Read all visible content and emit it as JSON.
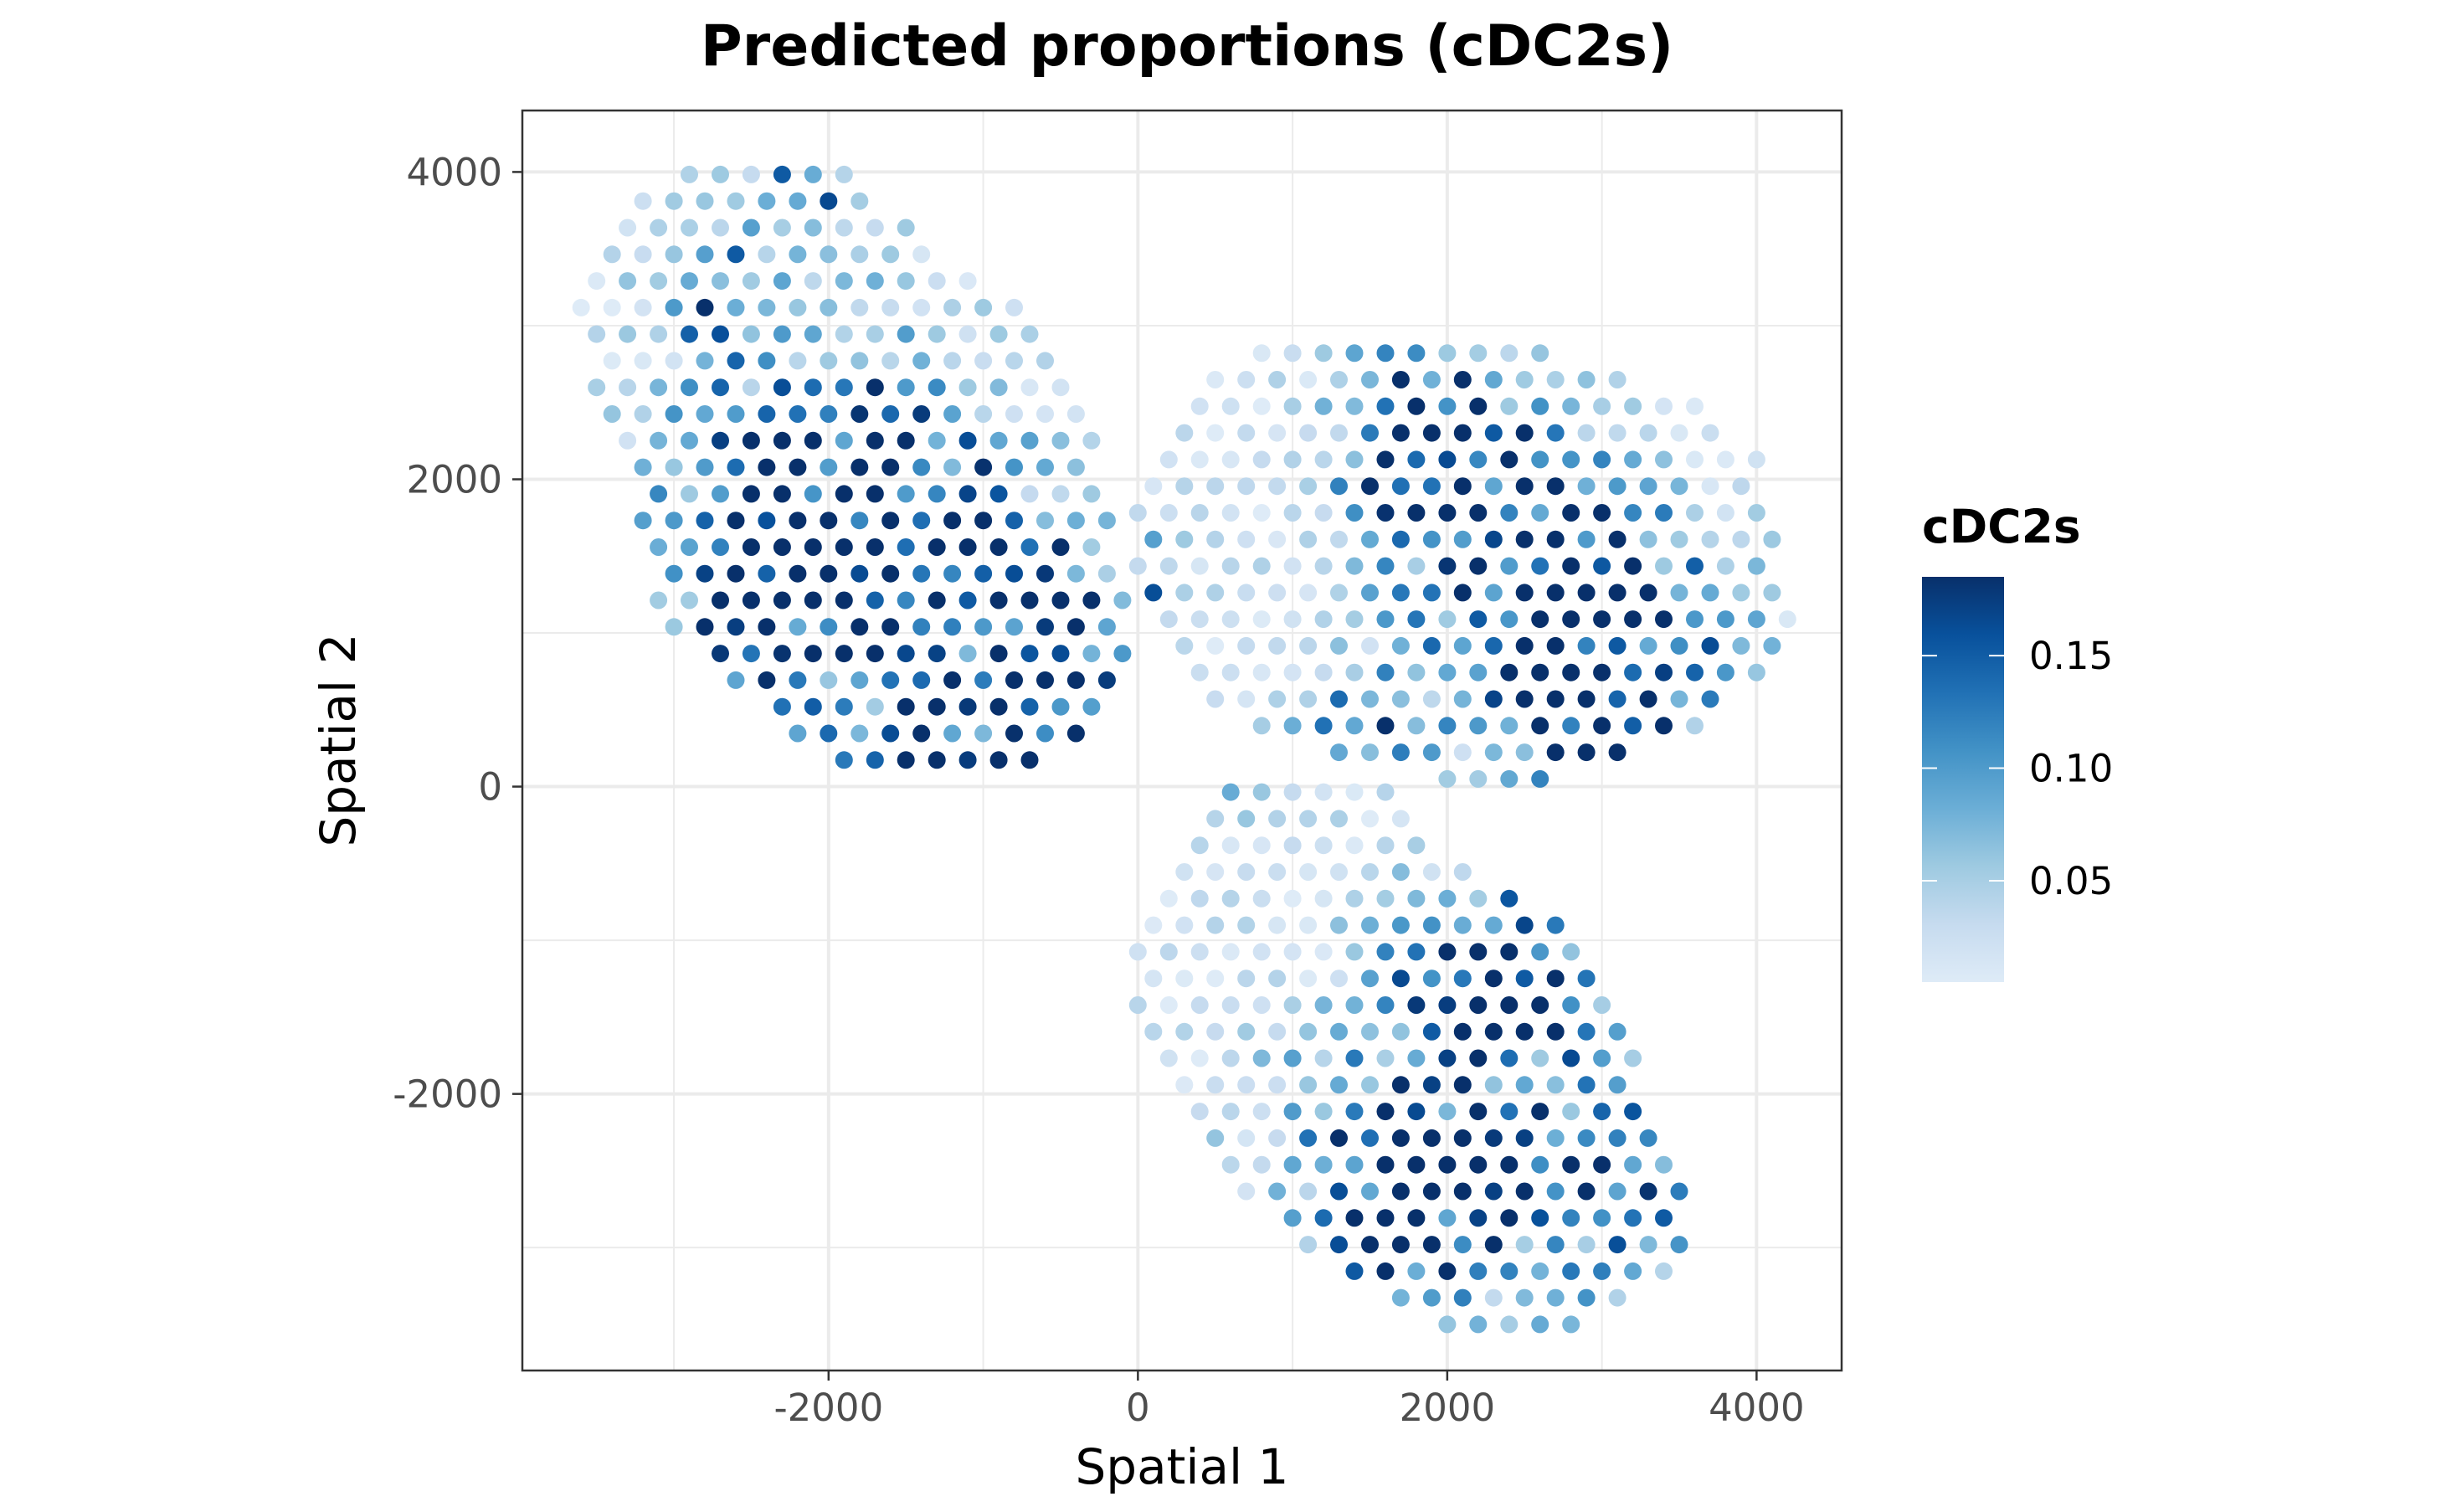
{
  "chart_data": {
    "type": "scatter",
    "title": "Predicted proportions (cDC2s)",
    "xlabel": "Spatial 1",
    "ylabel": "Spatial 2",
    "xlim": [
      -3980,
      4550
    ],
    "ylim": [
      -3800,
      4400
    ],
    "x_ticks": [
      -2000,
      0,
      2000,
      4000
    ],
    "y_ticks": [
      -2000,
      0,
      2000,
      4000
    ],
    "x_tick_labels": [
      "-2000",
      "0",
      "2000",
      "4000"
    ],
    "y_tick_labels": [
      "-2000",
      "0",
      "2000",
      "4000"
    ],
    "grid": true,
    "legend": {
      "title": "cDC2s",
      "position": "right",
      "range": [
        0.005,
        0.185
      ],
      "breaks": [
        0.05,
        0.1,
        0.15
      ],
      "break_labels": [
        "0.05",
        "0.10",
        "0.15"
      ],
      "colors": [
        "#deebf7",
        "#c6dbef",
        "#9ecae1",
        "#6baed6",
        "#4292c6",
        "#2171b5",
        "#08519c",
        "#08306b"
      ]
    },
    "spot_spacing": 200,
    "regions": [
      {
        "name": "upper-left section",
        "polygon": [
          [
            -2900,
            4100
          ],
          [
            -2000,
            4100
          ],
          [
            -1400,
            3600
          ],
          [
            -500,
            2900
          ],
          [
            -300,
            2300
          ],
          [
            0,
            900
          ],
          [
            -200,
            450
          ],
          [
            -700,
            100
          ],
          [
            -1400,
            0
          ],
          [
            -1900,
            100
          ],
          [
            -2400,
            500
          ],
          [
            -3050,
            1000
          ],
          [
            -3300,
            2000
          ],
          [
            -3600,
            2800
          ],
          [
            -3600,
            3300
          ],
          [
            -3300,
            3800
          ]
        ],
        "hotspots": [
          [
            -2100,
            2100,
            0.13,
            600
          ],
          [
            -1800,
            1700,
            0.09,
            500
          ],
          [
            -2800,
            3200,
            0.16,
            200
          ],
          [
            -1000,
            400,
            0.15,
            650
          ],
          [
            -500,
            1300,
            0.12,
            350
          ],
          [
            -2500,
            1200,
            0.11,
            500
          ],
          [
            -2200,
            3800,
            0.1,
            300
          ],
          [
            -1200,
            1950,
            0.08,
            300
          ]
        ],
        "base": 0.025
      },
      {
        "name": "right section",
        "polygon": [
          [
            600,
            2800
          ],
          [
            1200,
            2950
          ],
          [
            2700,
            2850
          ],
          [
            3600,
            2500
          ],
          [
            4050,
            2100
          ],
          [
            4250,
            1000
          ],
          [
            3800,
            500
          ],
          [
            3500,
            300
          ],
          [
            2800,
            50
          ],
          [
            2000,
            50
          ],
          [
            1100,
            250
          ],
          [
            500,
            500
          ],
          [
            0,
            1200
          ],
          [
            0,
            1900
          ],
          [
            300,
            2600
          ]
        ],
        "hotspots": [
          [
            1950,
            2300,
            0.15,
            450
          ],
          [
            2100,
            1800,
            0.08,
            500
          ],
          [
            3050,
            1000,
            0.16,
            550
          ],
          [
            2900,
            400,
            0.14,
            300
          ],
          [
            1500,
            300,
            0.12,
            300
          ],
          [
            2600,
            1200,
            0.08,
            500
          ],
          [
            100,
            1350,
            0.09,
            200
          ]
        ],
        "base": 0.02
      },
      {
        "name": "lower section",
        "polygon": [
          [
            500,
            100
          ],
          [
            1600,
            100
          ],
          [
            2000,
            -500
          ],
          [
            2700,
            -800
          ],
          [
            3200,
            -1600
          ],
          [
            3400,
            -2300
          ],
          [
            3600,
            -2800
          ],
          [
            3400,
            -3200
          ],
          [
            2900,
            -3500
          ],
          [
            1900,
            -3500
          ],
          [
            1400,
            -3200
          ],
          [
            700,
            -2700
          ],
          [
            300,
            -2000
          ],
          [
            0,
            -1500
          ],
          [
            0,
            -1000
          ],
          [
            200,
            -400
          ]
        ],
        "hotspots": [
          [
            2200,
            -1200,
            0.1,
            450
          ],
          [
            2400,
            -2300,
            0.11,
            700
          ],
          [
            1800,
            -3000,
            0.12,
            350
          ],
          [
            3200,
            -2700,
            0.09,
            350
          ],
          [
            1500,
            -2400,
            0.08,
            500
          ],
          [
            800,
            300,
            0.07,
            300
          ],
          [
            2500,
            -1100,
            0.12,
            300
          ]
        ],
        "base": 0.022
      }
    ]
  }
}
